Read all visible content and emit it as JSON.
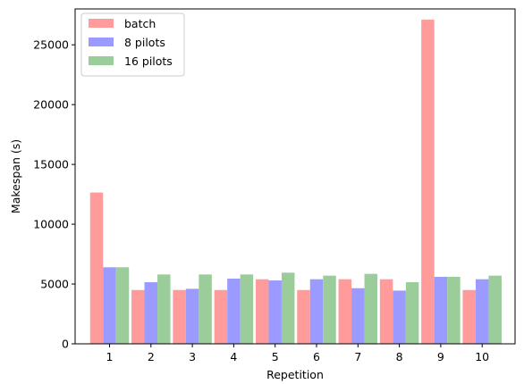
{
  "chart_data": {
    "type": "bar",
    "categories": [
      "1",
      "2",
      "3",
      "4",
      "5",
      "6",
      "7",
      "8",
      "9",
      "10"
    ],
    "series": [
      {
        "name": "batch",
        "color": "#ff9b9b",
        "values": [
          12650,
          4500,
          4500,
          4500,
          5400,
          4500,
          5400,
          5400,
          27100,
          4500
        ]
      },
      {
        "name": "8 pilots",
        "color": "#9b9bff",
        "values": [
          6400,
          5150,
          4600,
          5450,
          5300,
          5400,
          4650,
          4450,
          5600,
          5400
        ]
      },
      {
        "name": "16 pilots",
        "color": "#9bcd9b",
        "values": [
          6400,
          5800,
          5800,
          5800,
          5950,
          5700,
          5850,
          5150,
          5600,
          5700
        ]
      }
    ],
    "xlabel": "Repetition",
    "ylabel": "Makespan (s)",
    "ylim": [
      0,
      28000
    ],
    "yticks": [
      "0",
      "5000",
      "10000",
      "15000",
      "20000",
      "25000"
    ],
    "legend_position": "top-left",
    "grid": false
  }
}
